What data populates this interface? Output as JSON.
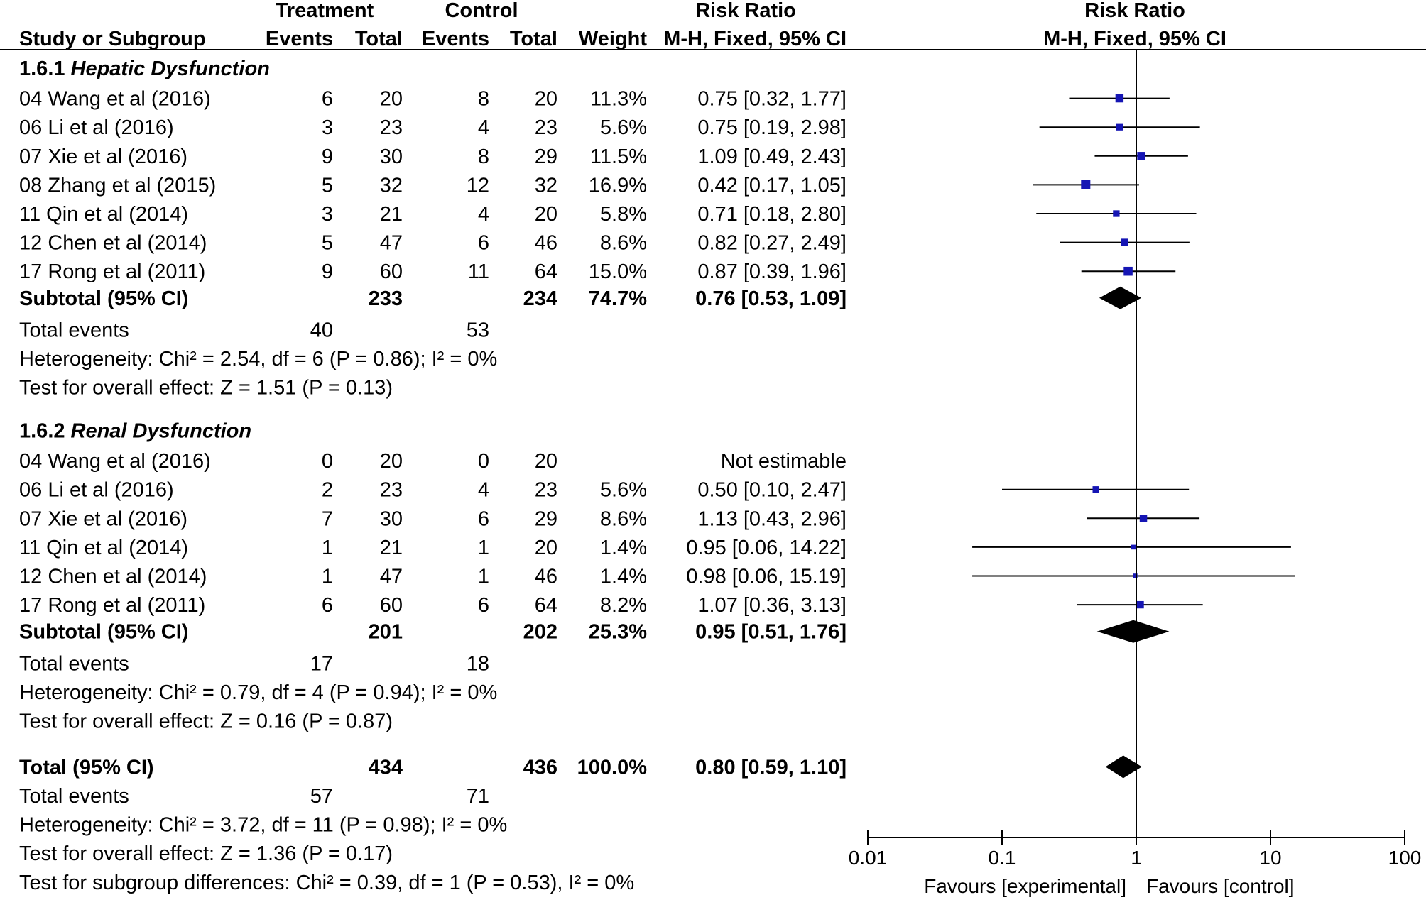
{
  "chart_data": {
    "type": "forest",
    "scale": "log",
    "header": {
      "treatment": "Treatment",
      "control": "Control",
      "risk_ratio": "Risk Ratio",
      "risk_ratio_plot": "Risk Ratio",
      "study": "Study or Subgroup",
      "events": "Events",
      "total": "Total",
      "events2": "Events",
      "total2": "Total",
      "weight": "Weight",
      "method": "M-H, Fixed, 95% CI",
      "method_plot": "M-H, Fixed, 95% CI"
    },
    "groups": [
      {
        "number": "1.6.1",
        "name": "Hepatic Dysfunction",
        "studies": [
          {
            "study": "04 Wang et al (2016)",
            "t_events": "6",
            "t_total": "20",
            "c_events": "8",
            "c_total": "20",
            "weight": "11.3%",
            "ci_text": "0.75 [0.32, 1.77]",
            "rr": 0.75,
            "lo": 0.32,
            "hi": 1.77,
            "w": 11.3
          },
          {
            "study": "06 Li et al (2016)",
            "t_events": "3",
            "t_total": "23",
            "c_events": "4",
            "c_total": "23",
            "weight": "5.6%",
            "ci_text": "0.75 [0.19, 2.98]",
            "rr": 0.75,
            "lo": 0.19,
            "hi": 2.98,
            "w": 5.6
          },
          {
            "study": "07 Xie et al (2016)",
            "t_events": "9",
            "t_total": "30",
            "c_events": "8",
            "c_total": "29",
            "weight": "11.5%",
            "ci_text": "1.09 [0.49, 2.43]",
            "rr": 1.09,
            "lo": 0.49,
            "hi": 2.43,
            "w": 11.5
          },
          {
            "study": "08 Zhang et al (2015)",
            "t_events": "5",
            "t_total": "32",
            "c_events": "12",
            "c_total": "32",
            "weight": "16.9%",
            "ci_text": "0.42 [0.17, 1.05]",
            "rr": 0.42,
            "lo": 0.17,
            "hi": 1.05,
            "w": 16.9
          },
          {
            "study": "11 Qin et al (2014)",
            "t_events": "3",
            "t_total": "21",
            "c_events": "4",
            "c_total": "20",
            "weight": "5.8%",
            "ci_text": "0.71 [0.18, 2.80]",
            "rr": 0.71,
            "lo": 0.18,
            "hi": 2.8,
            "w": 5.8
          },
          {
            "study": "12 Chen et al (2014)",
            "t_events": "5",
            "t_total": "47",
            "c_events": "6",
            "c_total": "46",
            "weight": "8.6%",
            "ci_text": "0.82 [0.27, 2.49]",
            "rr": 0.82,
            "lo": 0.27,
            "hi": 2.49,
            "w": 8.6
          },
          {
            "study": "17 Rong et al (2011)",
            "t_events": "9",
            "t_total": "60",
            "c_events": "11",
            "c_total": "64",
            "weight": "15.0%",
            "ci_text": "0.87 [0.39, 1.96]",
            "rr": 0.87,
            "lo": 0.39,
            "hi": 1.96,
            "w": 15.0
          }
        ],
        "subtotal": {
          "label": "Subtotal (95% CI)",
          "t_total": "233",
          "c_total": "234",
          "weight": "74.7%",
          "ci_text": "0.76 [0.53, 1.09]",
          "rr": 0.76,
          "lo": 0.53,
          "hi": 1.09
        },
        "total_events": {
          "label": "Total events",
          "t": "40",
          "c": "53"
        },
        "heterogeneity": "Heterogeneity: Chi² = 2.54, df = 6 (P = 0.86); I² = 0%",
        "overall": "Test for overall effect: Z = 1.51 (P = 0.13)"
      },
      {
        "number": "1.6.2",
        "name": "Renal Dysfunction",
        "studies": [
          {
            "study": "04 Wang et al (2016)",
            "t_events": "0",
            "t_total": "20",
            "c_events": "0",
            "c_total": "20",
            "weight": "",
            "ci_text": "Not estimable",
            "rr": null,
            "lo": null,
            "hi": null,
            "w": 0
          },
          {
            "study": "06 Li et al (2016)",
            "t_events": "2",
            "t_total": "23",
            "c_events": "4",
            "c_total": "23",
            "weight": "5.6%",
            "ci_text": "0.50 [0.10, 2.47]",
            "rr": 0.5,
            "lo": 0.1,
            "hi": 2.47,
            "w": 5.6
          },
          {
            "study": "07 Xie et al (2016)",
            "t_events": "7",
            "t_total": "30",
            "c_events": "6",
            "c_total": "29",
            "weight": "8.6%",
            "ci_text": "1.13 [0.43, 2.96]",
            "rr": 1.13,
            "lo": 0.43,
            "hi": 2.96,
            "w": 8.6
          },
          {
            "study": "11 Qin et al (2014)",
            "t_events": "1",
            "t_total": "21",
            "c_events": "1",
            "c_total": "20",
            "weight": "1.4%",
            "ci_text": "0.95 [0.06, 14.22]",
            "rr": 0.95,
            "lo": 0.06,
            "hi": 14.22,
            "w": 1.4
          },
          {
            "study": "12 Chen et al (2014)",
            "t_events": "1",
            "t_total": "47",
            "c_events": "1",
            "c_total": "46",
            "weight": "1.4%",
            "ci_text": "0.98 [0.06, 15.19]",
            "rr": 0.98,
            "lo": 0.06,
            "hi": 15.19,
            "w": 1.4
          },
          {
            "study": "17 Rong et al (2011)",
            "t_events": "6",
            "t_total": "60",
            "c_events": "6",
            "c_total": "64",
            "weight": "8.2%",
            "ci_text": "1.07 [0.36, 3.13]",
            "rr": 1.07,
            "lo": 0.36,
            "hi": 3.13,
            "w": 8.2
          }
        ],
        "subtotal": {
          "label": "Subtotal (95% CI)",
          "t_total": "201",
          "c_total": "202",
          "weight": "25.3%",
          "ci_text": "0.95 [0.51, 1.76]",
          "rr": 0.95,
          "lo": 0.51,
          "hi": 1.76
        },
        "total_events": {
          "label": "Total events",
          "t": "17",
          "c": "18"
        },
        "heterogeneity": "Heterogeneity: Chi² = 0.79, df = 4 (P = 0.94); I² = 0%",
        "overall": "Test for overall effect: Z = 0.16 (P = 0.87)"
      }
    ],
    "total": {
      "label": "Total (95% CI)",
      "t_total": "434",
      "c_total": "436",
      "weight": "100.0%",
      "ci_text": "0.80 [0.59, 1.10]",
      "rr": 0.8,
      "lo": 0.59,
      "hi": 1.1
    },
    "total_events": {
      "label": "Total events",
      "t": "57",
      "c": "71"
    },
    "heterogeneity": "Heterogeneity: Chi² = 3.72, df = 11 (P = 0.98); I² = 0%",
    "overall": "Test for overall effect: Z = 1.36 (P = 0.17)",
    "subgroup_diff": "Test for subgroup differences: Chi² = 0.39, df = 1 (P = 0.53), I² = 0%",
    "axis": {
      "min": 0.01,
      "max": 100,
      "ticks": [
        0.01,
        0.1,
        1,
        10,
        100
      ],
      "tick_labels": [
        "0.01",
        "0.1",
        "1",
        "10",
        "100"
      ],
      "favours_left": "Favours [experimental]",
      "favours_right": "Favours [control]"
    },
    "colors": {
      "marker": "#1515b4",
      "diamond": "#000000",
      "line": "#000000"
    }
  }
}
